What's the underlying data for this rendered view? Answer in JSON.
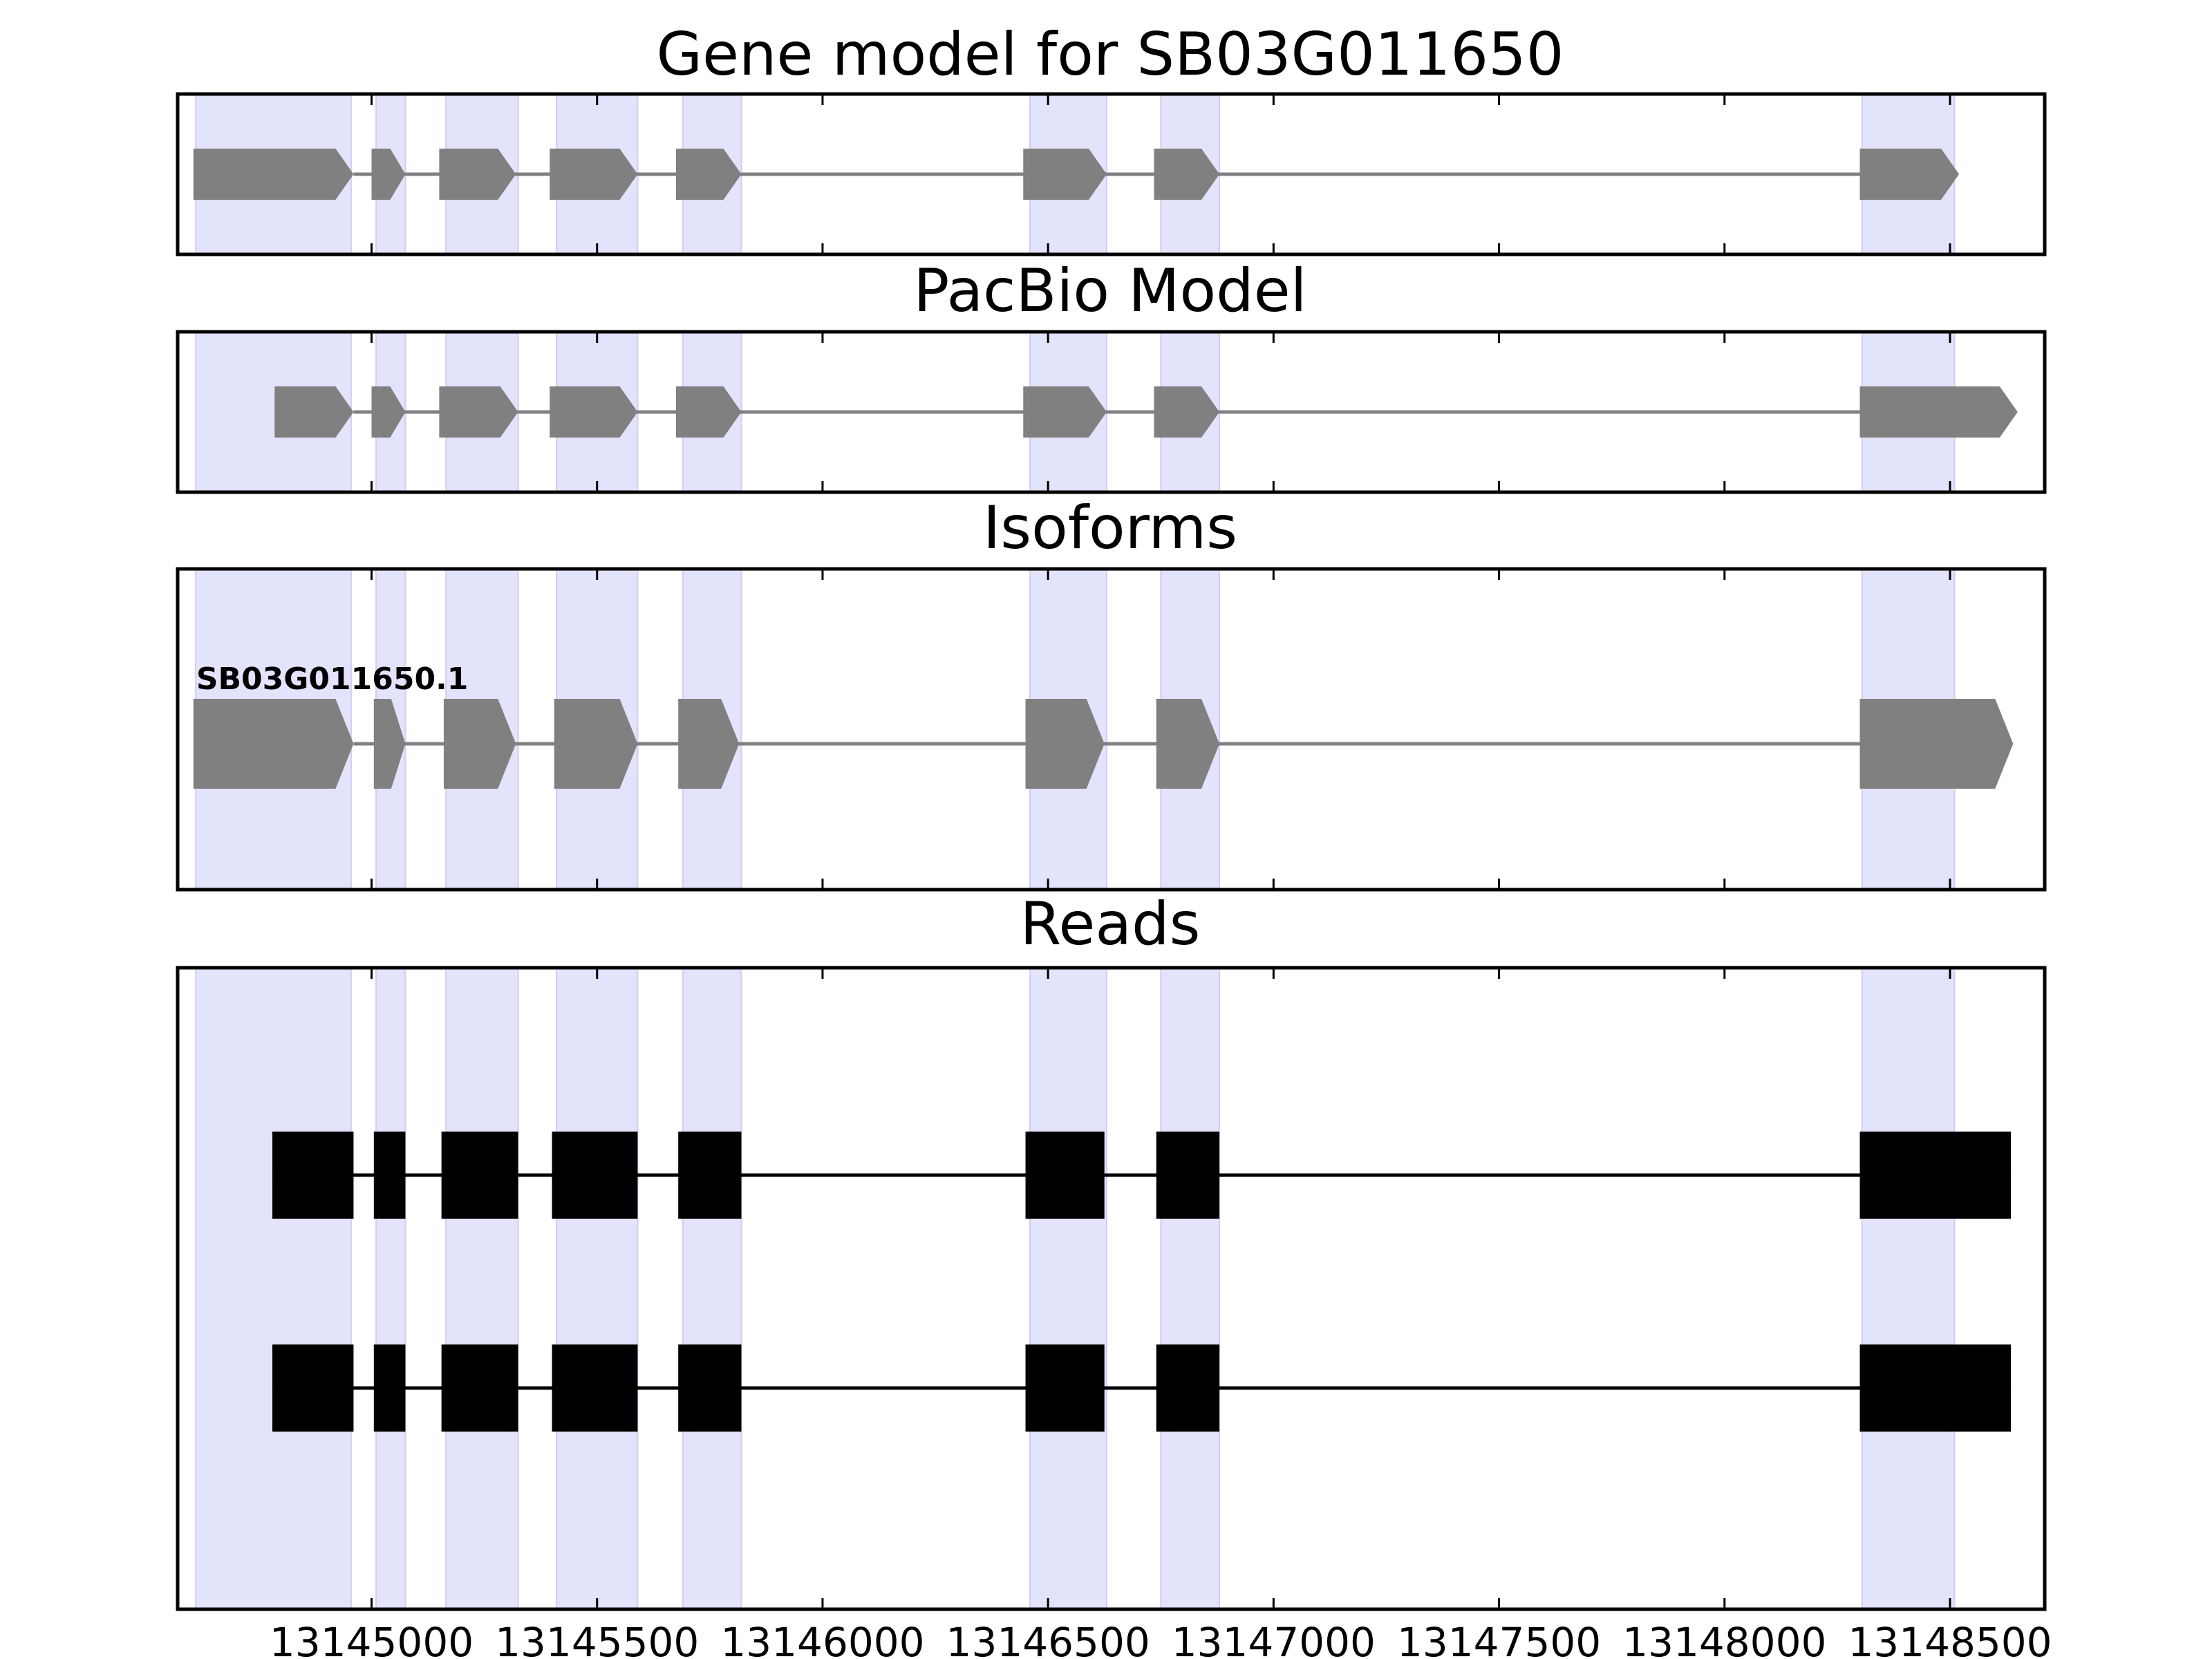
{
  "chart_data": {
    "type": "gene-track",
    "x_axis": {
      "ticks": [
        13145000,
        13145500,
        13146000,
        13146500,
        13147000,
        13147500,
        13148000,
        13148500
      ],
      "tick_labels": [
        "13145000",
        "13145500",
        "13146000",
        "13146500",
        "13147000",
        "13147500",
        "13148000",
        "13148500"
      ],
      "xlim": [
        13144570,
        13148710
      ]
    },
    "colors": {
      "exon_shade": "#e3e3fb",
      "gene_feature": "#808080",
      "read_block": "#000000",
      "frame": "#000000"
    },
    "panels": [
      {
        "title": "Gene model for SB03G011650",
        "shaded_exons": [
          [
            13144610,
            13144955
          ],
          [
            13145010,
            13145075
          ],
          [
            13145165,
            13145325
          ],
          [
            13145410,
            13145590
          ],
          [
            13145690,
            13145820
          ],
          [
            13146460,
            13146630
          ],
          [
            13146750,
            13146880
          ],
          [
            13148305,
            13148510
          ]
        ],
        "features": [
          {
            "label": "",
            "exons": [
              [
                13144605,
                13144960
              ],
              [
                13145000,
                13145075
              ],
              [
                13145150,
                13145320
              ],
              [
                13145395,
                13145590
              ],
              [
                13145675,
                13145820
              ],
              [
                13146445,
                13146630
              ],
              [
                13146735,
                13146880
              ],
              [
                13148300,
                13148520
              ]
            ],
            "strand": "+"
          }
        ]
      },
      {
        "title": "PacBio Model",
        "shaded_exons": [
          [
            13144610,
            13144955
          ],
          [
            13145010,
            13145075
          ],
          [
            13145165,
            13145325
          ],
          [
            13145410,
            13145590
          ],
          [
            13145690,
            13145820
          ],
          [
            13146460,
            13146630
          ],
          [
            13146750,
            13146880
          ],
          [
            13148305,
            13148510
          ]
        ],
        "features": [
          {
            "label": "",
            "exons": [
              [
                13144785,
                13144960
              ],
              [
                13145000,
                13145075
              ],
              [
                13145150,
                13145325
              ],
              [
                13145395,
                13145590
              ],
              [
                13145675,
                13145820
              ],
              [
                13146445,
                13146630
              ],
              [
                13146735,
                13146880
              ],
              [
                13148300,
                13148650
              ]
            ],
            "strand": "+"
          }
        ]
      },
      {
        "title": "Isoforms",
        "shaded_exons": [
          [
            13144610,
            13144955
          ],
          [
            13145010,
            13145075
          ],
          [
            13145165,
            13145325
          ],
          [
            13145410,
            13145590
          ],
          [
            13145690,
            13145820
          ],
          [
            13146460,
            13146630
          ],
          [
            13146750,
            13146880
          ],
          [
            13148305,
            13148510
          ]
        ],
        "features": [
          {
            "label": "SB03G011650.1",
            "exons": [
              [
                13144605,
                13144960
              ],
              [
                13145005,
                13145075
              ],
              [
                13145160,
                13145320
              ],
              [
                13145405,
                13145590
              ],
              [
                13145680,
                13145815
              ],
              [
                13146450,
                13146625
              ],
              [
                13146740,
                13146880
              ],
              [
                13148300,
                13148640
              ]
            ],
            "strand": "+"
          }
        ]
      },
      {
        "title": "Reads",
        "shaded_exons": [
          [
            13144610,
            13144955
          ],
          [
            13145010,
            13145075
          ],
          [
            13145165,
            13145325
          ],
          [
            13145410,
            13145590
          ],
          [
            13145690,
            13145820
          ],
          [
            13146460,
            13146630
          ],
          [
            13146750,
            13146880
          ],
          [
            13148305,
            13148510
          ]
        ],
        "reads": [
          {
            "exons": [
              [
                13144780,
                13144960
              ],
              [
                13145005,
                13145075
              ],
              [
                13145155,
                13145325
              ],
              [
                13145400,
                13145590
              ],
              [
                13145680,
                13145820
              ],
              [
                13146450,
                13146625
              ],
              [
                13146740,
                13146880
              ],
              [
                13148300,
                13148635
              ]
            ]
          },
          {
            "exons": [
              [
                13144780,
                13144960
              ],
              [
                13145005,
                13145075
              ],
              [
                13145155,
                13145325
              ],
              [
                13145400,
                13145590
              ],
              [
                13145680,
                13145820
              ],
              [
                13146450,
                13146625
              ],
              [
                13146740,
                13146880
              ],
              [
                13148300,
                13148635
              ]
            ]
          }
        ]
      }
    ]
  }
}
